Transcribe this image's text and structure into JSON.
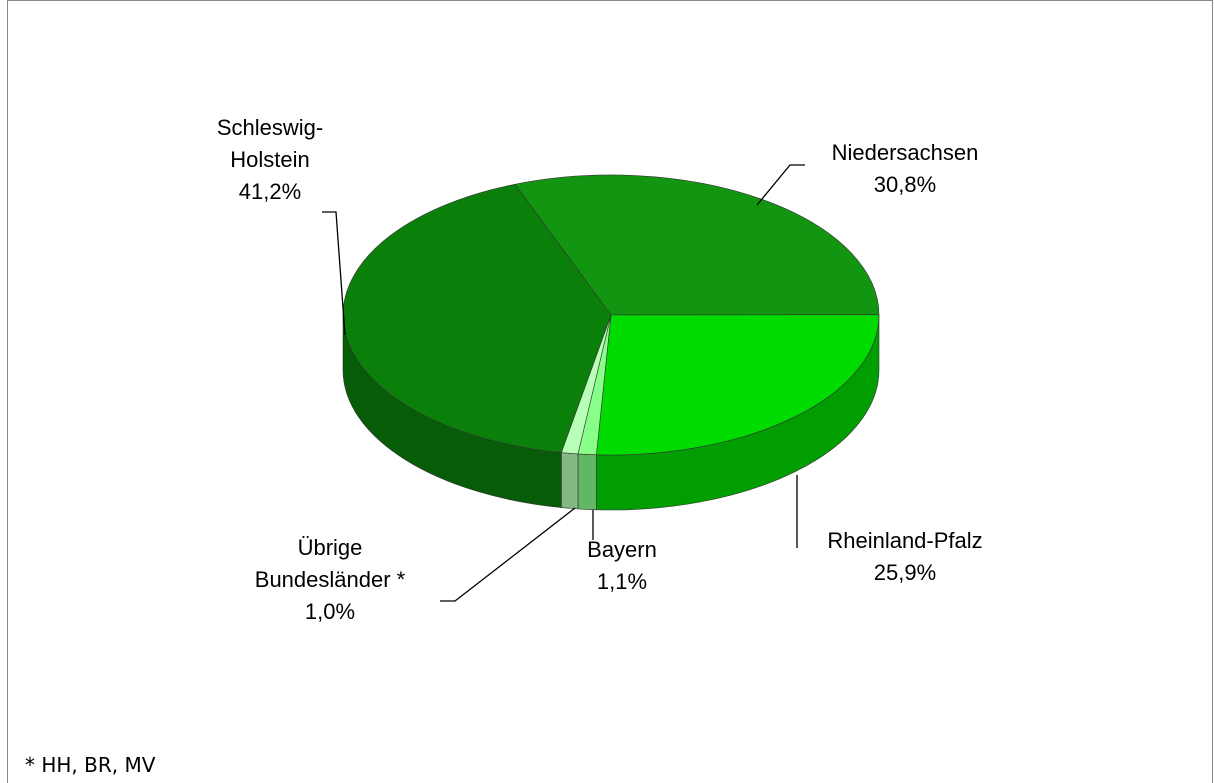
{
  "chart_data": {
    "type": "pie",
    "categories": [
      "Niedersachsen",
      "Rheinland-Pfalz",
      "Bayern",
      "Übrige Bundesländer *",
      "Schleswig-Holstein"
    ],
    "values": [
      30.8,
      25.9,
      1.1,
      1.0,
      41.2
    ],
    "value_labels": [
      "30,8%",
      "25,9%",
      "1,1%",
      "1,0%",
      "41,2%"
    ],
    "colors": [
      "#129612",
      "#00dc00",
      "#88ff88",
      "#b8ffb8",
      "#0a800a"
    ],
    "footnote": "* HH, BR, MV"
  }
}
